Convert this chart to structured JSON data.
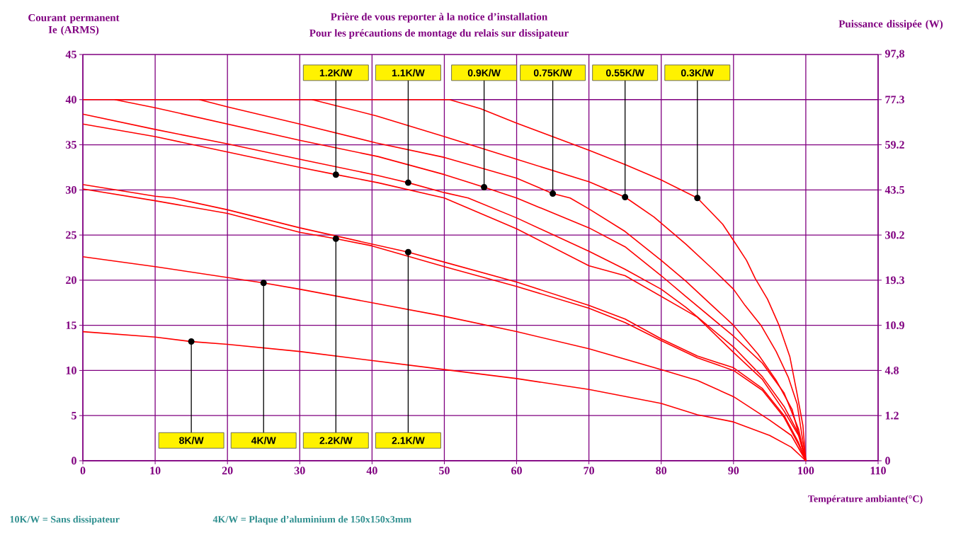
{
  "chart_data": {
    "type": "line",
    "title": "Prière de vous reporter à la notice d’installation",
    "subtitle": "Pour les précautions de montage du relais sur dissipateur",
    "xlabel": "Température ambiante(°C)",
    "ylabel": "Courant permanent Ie (ARMS)",
    "y2label": "Puissance dissipée (W)",
    "xlim": [
      0,
      110
    ],
    "xticks": [
      0,
      10,
      20,
      30,
      40,
      50,
      60,
      70,
      80,
      90,
      100,
      110
    ],
    "ylim": [
      0,
      45
    ],
    "yticks": [
      0,
      5,
      10,
      15,
      20,
      25,
      30,
      35,
      40,
      45
    ],
    "grid": true,
    "marker": "none",
    "line_style": "solid",
    "series": [
      {
        "color": "#ff0000",
        "x": [
          0,
          50.7,
          55,
          60,
          70,
          75,
          80,
          85,
          88.5,
          90,
          91.8,
          93,
          94.7,
          96.3,
          97.8,
          98.8,
          99.6,
          100
        ],
        "values": [
          40,
          40,
          39,
          37.4,
          34.4,
          32.8,
          31.1,
          29.1,
          26.2,
          24.4,
          22.2,
          20.2,
          17.9,
          15,
          11.5,
          7.4,
          3.9,
          0
        ]
      },
      {
        "color": "#ff0000",
        "x": [
          31.7,
          40.6,
          50,
          60,
          70,
          75,
          79,
          83.4,
          86.9,
          90,
          91.6,
          93.8,
          95.9,
          97.6,
          98.8,
          100
        ],
        "values": [
          40,
          38.2,
          35.9,
          33.4,
          30.9,
          29.2,
          27,
          24,
          21.4,
          19,
          17.2,
          15,
          12.1,
          9.2,
          6.3,
          0
        ]
      },
      {
        "color": "#ff0000",
        "x": [
          16.1,
          20,
          30,
          40.6,
          50,
          60,
          65,
          67.4,
          70,
          75,
          80,
          83.4,
          86.9,
          90,
          93.4,
          95.9,
          98.1,
          100
        ],
        "values": [
          40,
          39.2,
          37.3,
          35.2,
          33.6,
          31.3,
          29.6,
          29.1,
          27.9,
          25.4,
          22.2,
          19.9,
          17.3,
          15,
          11.8,
          8.9,
          5.7,
          0
        ]
      },
      {
        "color": "#ff0000",
        "x": [
          4.4,
          10,
          20,
          30,
          40.8,
          50,
          55.5,
          60,
          70,
          75,
          80,
          83.4,
          90,
          94,
          97,
          99,
          100
        ],
        "values": [
          40,
          39.1,
          37.3,
          35.5,
          33.7,
          31.7,
          30.3,
          29.1,
          25.8,
          23.7,
          20.5,
          18.2,
          13.8,
          10.8,
          7.5,
          3.5,
          0
        ]
      },
      {
        "color": "#ff0000",
        "x": [
          0,
          10,
          20,
          30,
          40.8,
          45,
          50,
          53.3,
          60,
          70,
          75,
          80,
          83.4,
          90,
          94,
          97,
          99,
          100
        ],
        "values": [
          38.4,
          36.7,
          35.1,
          33.4,
          31.6,
          30.8,
          29.7,
          29.1,
          26.9,
          23.2,
          21.2,
          19,
          17,
          12.6,
          9.3,
          6,
          3,
          0
        ]
      },
      {
        "color": "#ff0000",
        "x": [
          0,
          10,
          20,
          30,
          35,
          40.8,
          50,
          60,
          70,
          75,
          80,
          85,
          90,
          94,
          97,
          99,
          100
        ],
        "values": [
          37.3,
          35.9,
          34.2,
          32.5,
          31.7,
          30.8,
          29.1,
          25.7,
          21.6,
          20.5,
          18.2,
          15.9,
          12,
          9,
          5.5,
          2.8,
          0
        ]
      },
      {
        "color": "#ff0000",
        "x": [
          0,
          10,
          12.5,
          20,
          30,
          45,
          50,
          60,
          70,
          75,
          80,
          85,
          90,
          94,
          97,
          99,
          100
        ],
        "values": [
          30.6,
          29.3,
          29.1,
          27.8,
          25.8,
          23.1,
          22,
          19.8,
          17.2,
          15.7,
          13.5,
          11.6,
          10.3,
          8,
          5,
          2,
          0
        ]
      },
      {
        "color": "#ff0000",
        "x": [
          0,
          10,
          20,
          30,
          35,
          40,
          50,
          60,
          70,
          75,
          80,
          85,
          90,
          94,
          97,
          99,
          100
        ],
        "values": [
          30.1,
          28.8,
          27.4,
          25.3,
          24.6,
          23.8,
          21.5,
          19.3,
          16.9,
          15.3,
          13.3,
          11.4,
          10,
          7.8,
          4.8,
          1.8,
          0
        ]
      },
      {
        "color": "#ff0000",
        "x": [
          0,
          10,
          20,
          25,
          30,
          40,
          50,
          60,
          70,
          80,
          85,
          90,
          95,
          98,
          100
        ],
        "values": [
          22.6,
          21.5,
          20.3,
          19.7,
          19,
          17.5,
          16,
          14.3,
          12.4,
          10.1,
          8.9,
          7.1,
          4.5,
          2.8,
          0
        ]
      },
      {
        "color": "#ff0000",
        "x": [
          0,
          10,
          15,
          20,
          30,
          40,
          50,
          60,
          70,
          80,
          85,
          90,
          95,
          98,
          100
        ],
        "values": [
          14.3,
          13.7,
          13.2,
          12.9,
          12.1,
          11.1,
          10.1,
          9.1,
          7.9,
          6.35,
          5.1,
          4.3,
          2.8,
          1.5,
          0
        ]
      }
    ],
    "annotations": [
      {
        "text": "1.2K/W",
        "x": 35,
        "y": 31.7
      },
      {
        "text": "1.1K/W",
        "x": 45,
        "y": 30.8
      },
      {
        "text": "0.9K/W",
        "x": 55.5,
        "y": 30.3
      },
      {
        "text": "0.75K/W",
        "x": 65,
        "y": 29.6
      },
      {
        "text": "0.55K/W",
        "x": 75,
        "y": 29.2
      },
      {
        "text": "0.3K/W",
        "x": 85,
        "y": 29.1
      },
      {
        "text": "8K/W",
        "x": 15,
        "y": 13.2
      },
      {
        "text": "4K/W",
        "x": 25,
        "y": 19.7
      },
      {
        "text": "2.2K/W",
        "x": 35,
        "y": 24.6
      },
      {
        "text": "2.1K/W",
        "x": 45,
        "y": 23.1
      },
      "0",
      "1.2",
      "4.8",
      "10.9",
      "19.3",
      "30.2",
      "43.5",
      "59.2",
      "77.3",
      "97,8",
      "10K/W = Sans dissipateur",
      "4K/W = Plaque d’aluminium de 150x150x3mm"
    ]
  }
}
